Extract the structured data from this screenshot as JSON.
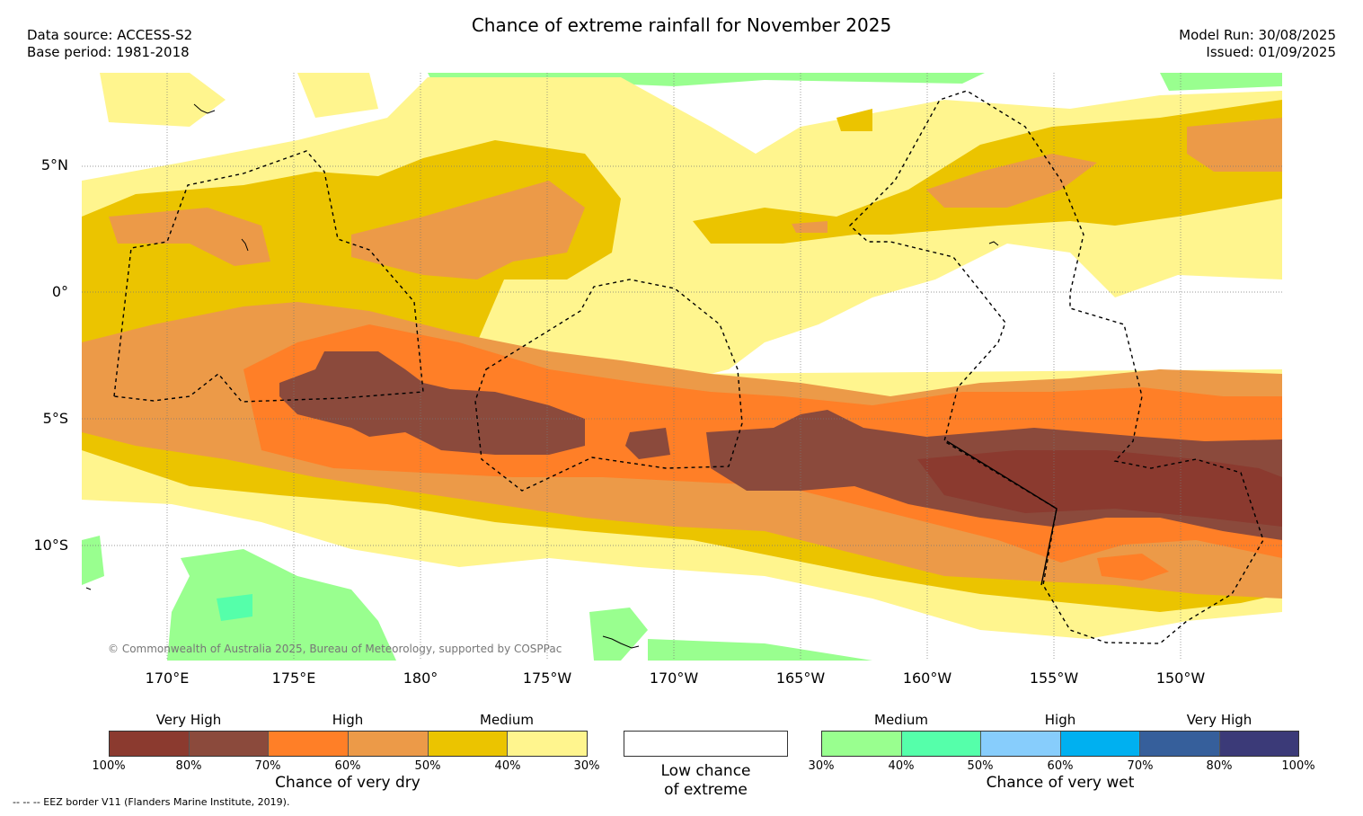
{
  "title": "Chance of extreme rainfall for November 2025",
  "meta": {
    "data_source": "Data source: ACCESS-S2",
    "base_period": "Base period: 1981-2018",
    "model_run": "Model Run: 30/08/2025",
    "issued": "Issued: 01/09/2025"
  },
  "map": {
    "lat_ticks": [
      "5°N",
      "0°",
      "5°S",
      "10°S"
    ],
    "lon_ticks": [
      "170°E",
      "175°E",
      "180°",
      "175°W",
      "170°W",
      "165°W",
      "160°W",
      "155°W",
      "150°W"
    ],
    "copyright": "© Commonwealth of Australia 2025, Bureau of Meteorology, supported by COSPPac",
    "colors": {
      "dry_very_high_100": "#8b3a2f",
      "dry_very_high_80": "#8b4a3c",
      "dry_high_70": "#ff7f27",
      "dry_high_60": "#ec9a48",
      "dry_medium_50": "#ebc400",
      "dry_medium_40": "#fff58e",
      "wet_medium_30": "#99ff8f",
      "low_chance": "#ffffff"
    }
  },
  "legend_dry": {
    "categories": [
      "Very High",
      "High",
      "Medium"
    ],
    "percentages": [
      "100%",
      "80%",
      "70%",
      "60%",
      "50%",
      "40%",
      "30%"
    ],
    "colors": [
      "#8b3a2f",
      "#8b4a3c",
      "#ff7f27",
      "#ec9a48",
      "#ebc400",
      "#fff58e"
    ],
    "title": "Chance of very dry"
  },
  "legend_low": {
    "line1": "Low chance",
    "line2": "of extreme"
  },
  "legend_wet": {
    "categories": [
      "Medium",
      "High",
      "Very High"
    ],
    "percentages": [
      "30%",
      "40%",
      "50%",
      "60%",
      "70%",
      "80%",
      "100%"
    ],
    "colors": [
      "#99ff8f",
      "#55ffaa",
      "#87cdfc",
      "#00b0f0",
      "#365f9b",
      "#3b3a78"
    ],
    "title": "Chance of very wet"
  },
  "footnote": "-- -- -- EEZ border V11 (Flanders Marine Institute, 2019)."
}
